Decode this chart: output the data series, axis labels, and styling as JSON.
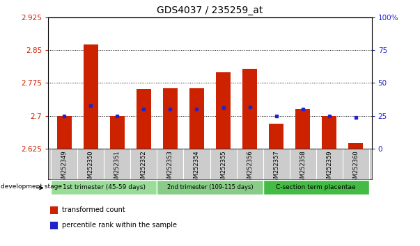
{
  "title": "GDS4037 / 235259_at",
  "samples": [
    "GSM252349",
    "GSM252350",
    "GSM252351",
    "GSM252352",
    "GSM252353",
    "GSM252354",
    "GSM252355",
    "GSM252356",
    "GSM252357",
    "GSM252358",
    "GSM252359",
    "GSM252360"
  ],
  "red_values": [
    2.7,
    2.863,
    2.7,
    2.762,
    2.763,
    2.763,
    2.8,
    2.808,
    2.682,
    2.716,
    2.7,
    2.638
  ],
  "blue_values_pct": [
    25,
    33,
    25,
    30,
    30,
    30,
    31,
    32,
    25,
    30,
    25,
    24
  ],
  "ylim_left": [
    2.625,
    2.925
  ],
  "ylim_right": [
    0,
    100
  ],
  "yticks_left": [
    2.625,
    2.7,
    2.775,
    2.85,
    2.925
  ],
  "yticks_right": [
    0,
    25,
    50,
    75,
    100
  ],
  "ytick_labels_left": [
    "2.625",
    "2.7",
    "2.775",
    "2.85",
    "2.925"
  ],
  "ytick_labels_right": [
    "0",
    "25",
    "50",
    "75",
    "100%"
  ],
  "gridlines": [
    2.7,
    2.775,
    2.85
  ],
  "bar_color": "#cc2200",
  "dot_color": "#2222cc",
  "background_plot": "#ffffff",
  "background_samples": "#cccccc",
  "groups": [
    {
      "label": "1st trimester (45-59 days)",
      "start": 0,
      "end": 4,
      "color": "#99dd99"
    },
    {
      "label": "2nd trimester (109-115 days)",
      "start": 4,
      "end": 8,
      "color": "#88cc88"
    },
    {
      "label": "C-section term placentae",
      "start": 8,
      "end": 12,
      "color": "#44bb44"
    }
  ],
  "legend_items": [
    {
      "label": "transformed count",
      "color": "#cc2200"
    },
    {
      "label": "percentile rank within the sample",
      "color": "#2222cc"
    }
  ],
  "dev_stage_label": "development stage",
  "base_value": 2.625
}
